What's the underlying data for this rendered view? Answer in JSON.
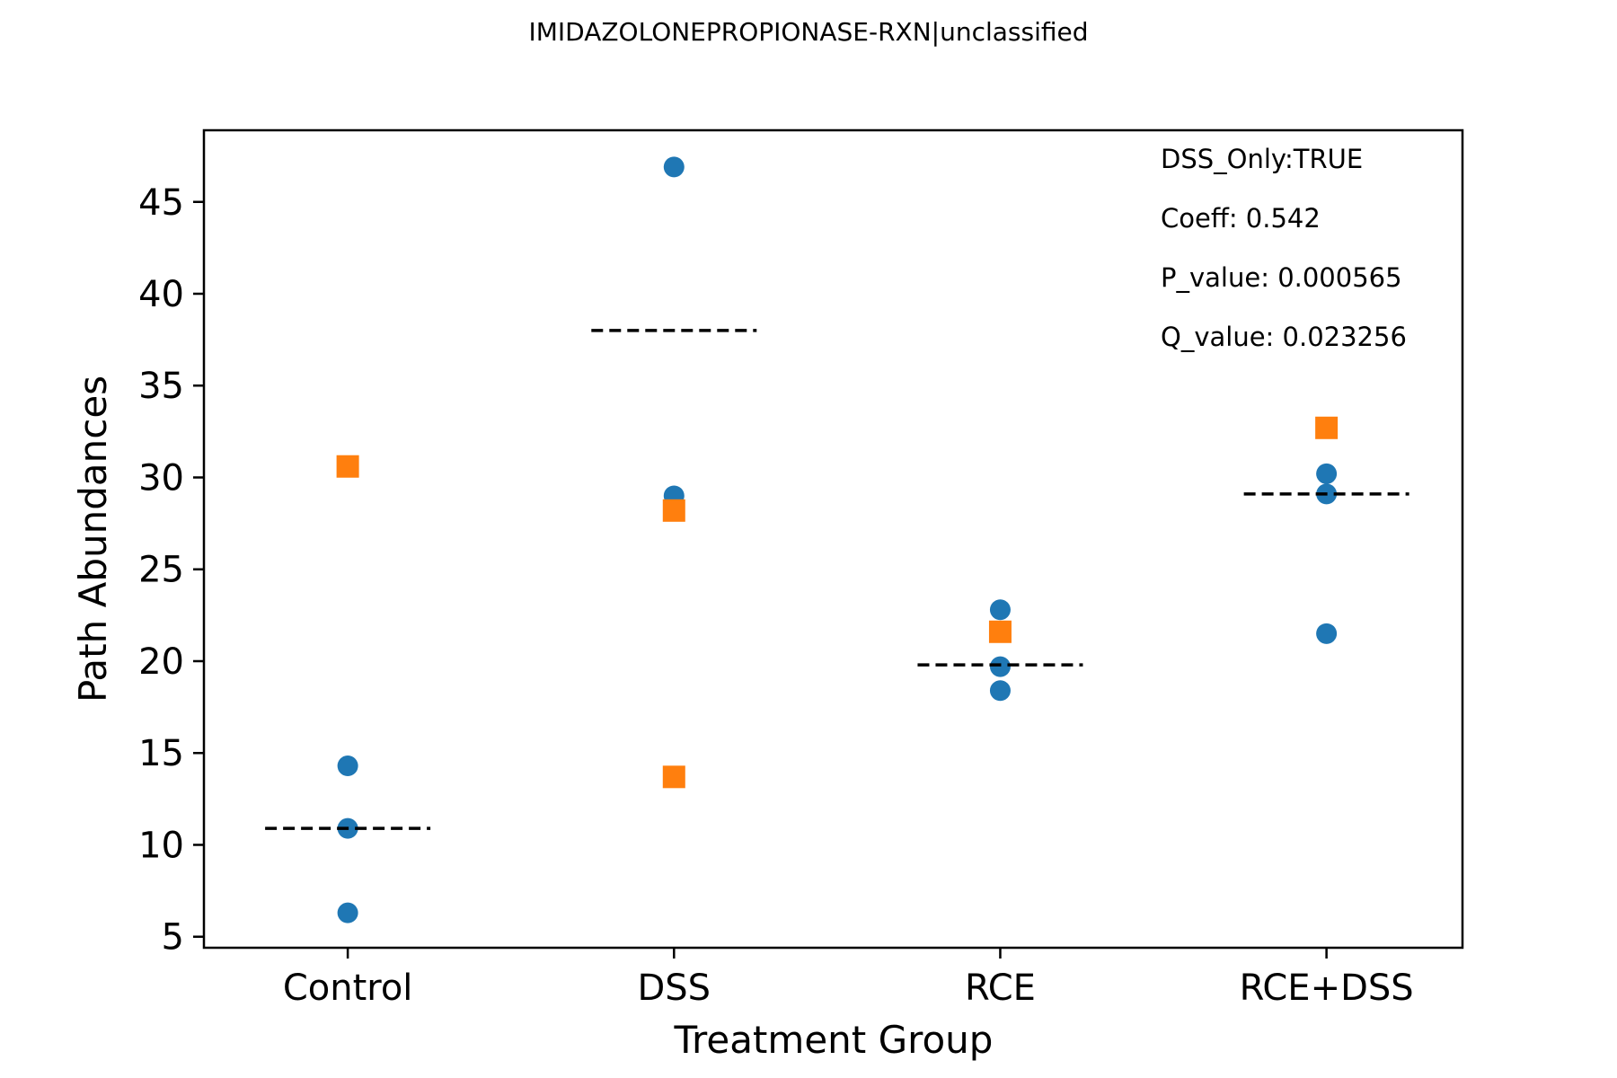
{
  "chart_data": {
    "type": "scatter",
    "title": "IMIDAZOLONEPROPIONASE-RXN|unclassified",
    "xlabel": "Treatment Group",
    "ylabel": "Path Abundances",
    "categories": [
      "Control",
      "DSS",
      "RCE",
      "RCE+DSS"
    ],
    "ylim": [
      4.4,
      48.9
    ],
    "yticks": [
      5,
      10,
      15,
      20,
      25,
      30,
      35,
      40,
      45
    ],
    "grid": false,
    "colors": {
      "circle_series": "#1f77b4",
      "square_series": "#ff7f0e",
      "mean_line": "#000000"
    },
    "series": [
      {
        "marker": "circle",
        "color": "#1f77b4",
        "points": [
          {
            "category": "Control",
            "y": 14.3
          },
          {
            "category": "Control",
            "y": 10.9
          },
          {
            "category": "Control",
            "y": 6.3
          },
          {
            "category": "DSS",
            "y": 46.9
          },
          {
            "category": "DSS",
            "y": 29.0
          },
          {
            "category": "RCE",
            "y": 22.8
          },
          {
            "category": "RCE",
            "y": 19.7
          },
          {
            "category": "RCE",
            "y": 18.4
          },
          {
            "category": "RCE+DSS",
            "y": 30.2
          },
          {
            "category": "RCE+DSS",
            "y": 29.1
          },
          {
            "category": "RCE+DSS",
            "y": 21.5
          }
        ]
      },
      {
        "marker": "square",
        "color": "#ff7f0e",
        "points": [
          {
            "category": "Control",
            "y": 30.6
          },
          {
            "category": "DSS",
            "y": 28.2
          },
          {
            "category": "DSS",
            "y": 13.7
          },
          {
            "category": "RCE",
            "y": 21.6
          },
          {
            "category": "RCE+DSS",
            "y": 32.7
          }
        ]
      }
    ],
    "means": [
      {
        "category": "Control",
        "y": 10.9
      },
      {
        "category": "DSS",
        "y": 38.0
      },
      {
        "category": "RCE",
        "y": 19.8
      },
      {
        "category": "RCE+DSS",
        "y": 29.1
      }
    ],
    "annotations": [
      "DSS_Only:TRUE",
      "Coeff: 0.542",
      "P_value: 0.000565",
      "Q_value: 0.023256"
    ]
  }
}
